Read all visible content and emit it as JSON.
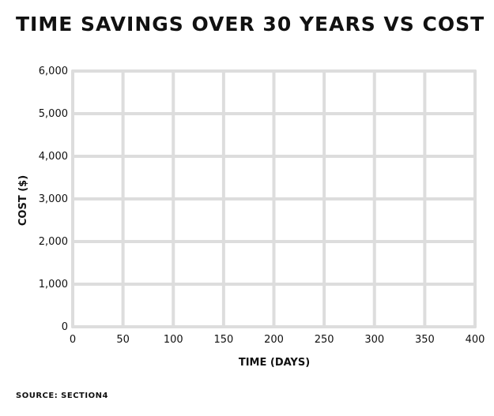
{
  "chart_data": {
    "type": "scatter",
    "title": "TIME SAVINGS OVER 30 YEARS VS COST",
    "xlabel": "TIME (DAYS)",
    "ylabel": "COST ($)",
    "xlim": [
      0,
      400
    ],
    "ylim": [
      0,
      6000
    ],
    "x_ticks": [
      0,
      50,
      100,
      150,
      200,
      250,
      300,
      350,
      400
    ],
    "x_tick_labels": [
      "0",
      "50",
      "100",
      "150",
      "200",
      "250",
      "300",
      "350",
      "400"
    ],
    "y_ticks": [
      0,
      1000,
      2000,
      3000,
      4000,
      5000,
      6000
    ],
    "y_tick_labels": [
      "0",
      "1,000",
      "2,000",
      "3,000",
      "4,000",
      "5,000",
      "6,000"
    ],
    "grid": true,
    "series": []
  },
  "source": "SOURCE: SECTION4",
  "colors": {
    "grid": "#dddddd",
    "axis": "#dddddd",
    "text": "#111111"
  }
}
